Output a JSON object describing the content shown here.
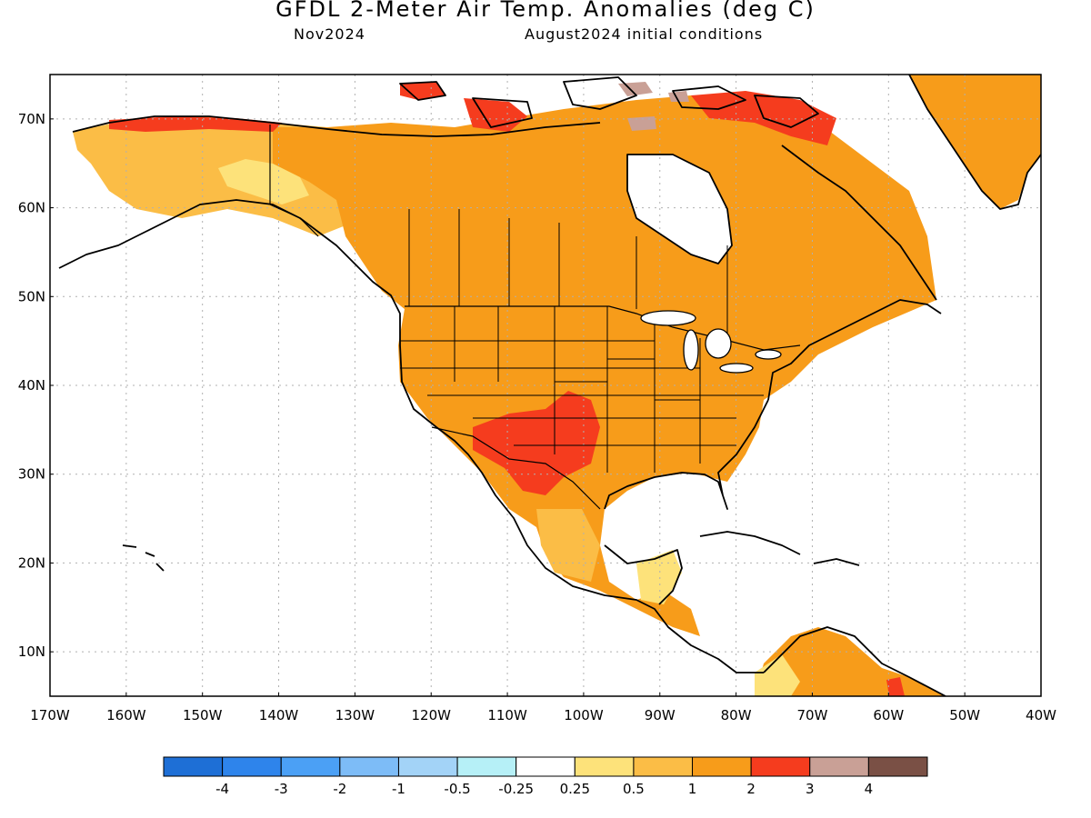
{
  "title": "GFDL 2-Meter Air Temp. Anomalies (deg C)",
  "subtitle_left": "Nov2024",
  "subtitle_right": "August2024 initial conditions",
  "map": {
    "lon_range": [
      -170,
      -40
    ],
    "lat_range": [
      5,
      75
    ],
    "lat_labels": [
      "70N",
      "60N",
      "50N",
      "40N",
      "30N",
      "20N",
      "10N"
    ],
    "lon_labels": [
      "170W",
      "160W",
      "150W",
      "140W",
      "130W",
      "120W",
      "110W",
      "100W",
      "90W",
      "80W",
      "70W",
      "60W",
      "50W",
      "40W"
    ],
    "gridlines": "dotted"
  },
  "colorbar": {
    "colors": [
      "#1e6fd6",
      "#2e84eb",
      "#4ba0f5",
      "#7dbcf7",
      "#a3d3f7",
      "#b6f0f7",
      "#ffffff",
      "#fde27a",
      "#fbbd46",
      "#f79c1a",
      "#f53c1e",
      "#c9a096",
      "#7a5045"
    ],
    "labels": [
      "-4",
      "-3",
      "-2",
      "-1",
      "-0.5",
      "-0.25",
      "0.25",
      "0.5",
      "1",
      "2",
      "3",
      "4"
    ]
  },
  "anomaly_colors": {
    "light": "#fde27a",
    "weak": "#fbbd46",
    "moderate": "#f79c1a",
    "strong": "#f53c1e",
    "extreme": "#c9a096"
  }
}
